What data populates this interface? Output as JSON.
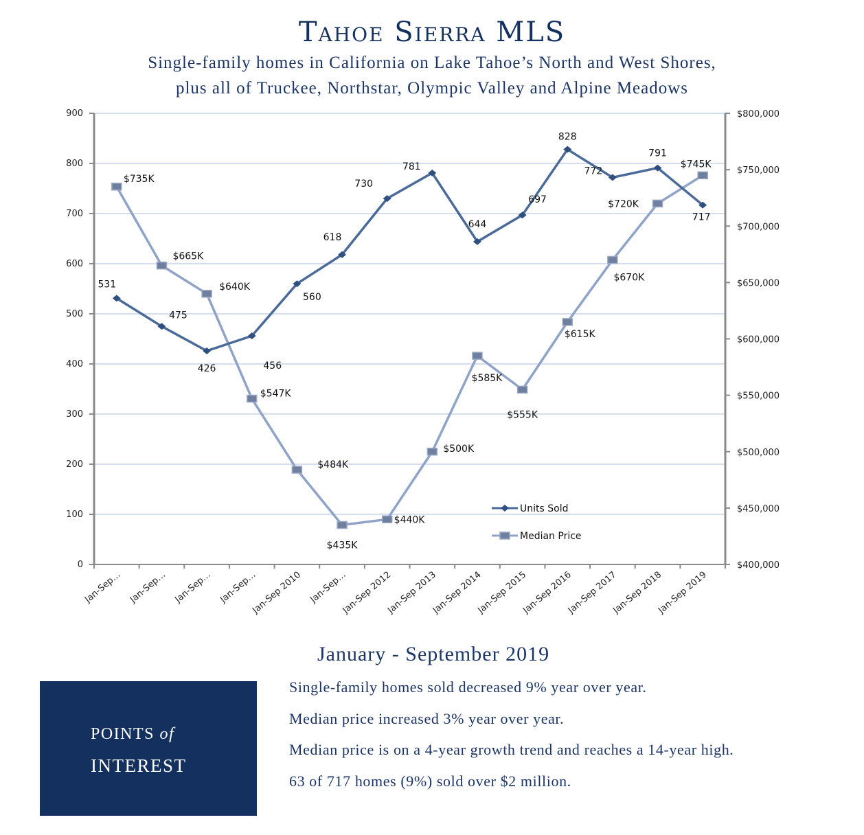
{
  "header": {
    "title": "Tahoe Sierra MLS",
    "subtitle_line1": "Single-family homes in California on Lake Tahoe’s North and West Shores,",
    "subtitle_line2": "plus all of Truckee, Northstar, Olympic Valley and Alpine Meadows"
  },
  "colors": {
    "navy": "#14305f",
    "units_line": "#4a6a9a",
    "price_line": "#8ea3c7",
    "gridline": "#c5d3ea",
    "axis": "#8a8a8a"
  },
  "chart_data": {
    "type": "line",
    "categories": [
      "Jan-Sep…",
      "Jan-Sep…",
      "Jan-Sep…",
      "Jan-Sep…",
      "Jan-Sep 2010",
      "Jan-Sep…",
      "Jan-Sep 2012",
      "Jan-Sep 2013",
      "Jan-Sep 2014",
      "Jan-Sep 2015",
      "Jan-Sep 2016",
      "Jan-Sep 2017",
      "Jan-Sep 2018",
      "Jan-Sep 2019"
    ],
    "series": [
      {
        "name": "Units Sold",
        "axis": "left",
        "marker": "diamond",
        "values": [
          531,
          475,
          426,
          456,
          560,
          618,
          730,
          781,
          644,
          697,
          828,
          772,
          791,
          717
        ],
        "labels": [
          "531",
          "475",
          "426",
          "456",
          "560",
          "618",
          "730",
          "781",
          "644",
          "697",
          "828",
          "772",
          "791",
          "717"
        ]
      },
      {
        "name": "Median Price",
        "axis": "right",
        "marker": "square",
        "values": [
          735000,
          665000,
          640000,
          547000,
          484000,
          435000,
          440000,
          500000,
          585000,
          555000,
          615000,
          670000,
          720000,
          745000
        ],
        "labels": [
          "$735K",
          "$665K",
          "$640K",
          "$547K",
          "$484K",
          "$435K",
          "$440K",
          "$500K",
          "$585K",
          "$555K",
          "$615K",
          "$670K",
          "$720K",
          "$745K"
        ]
      }
    ],
    "y_left": {
      "range": [
        0,
        900
      ],
      "ticks": [
        "0",
        "100",
        "200",
        "300",
        "400",
        "500",
        "600",
        "700",
        "800",
        "900"
      ]
    },
    "y_right": {
      "range": [
        400000,
        800000
      ],
      "ticks": [
        "$400,000",
        "$450,000",
        "$500,000",
        "$550,000",
        "$600,000",
        "$650,000",
        "$700,000",
        "$750,000",
        "$800,000"
      ]
    },
    "grid": true,
    "legend": {
      "position": "bottom-center-right",
      "entries": [
        "Units Sold",
        "Median Price"
      ]
    }
  },
  "summary": {
    "period": "January - September 2019",
    "box_line1": "POINTS",
    "box_line1_italic": "of",
    "box_line2": "INTEREST",
    "points": [
      "Single-family homes sold decreased 9% year over year.",
      "Median price increased 3% year over year.",
      "Median price is on a 4-year growth trend and reaches a 14-year high.",
      "63 of 717 homes (9%) sold over $2 million."
    ]
  }
}
